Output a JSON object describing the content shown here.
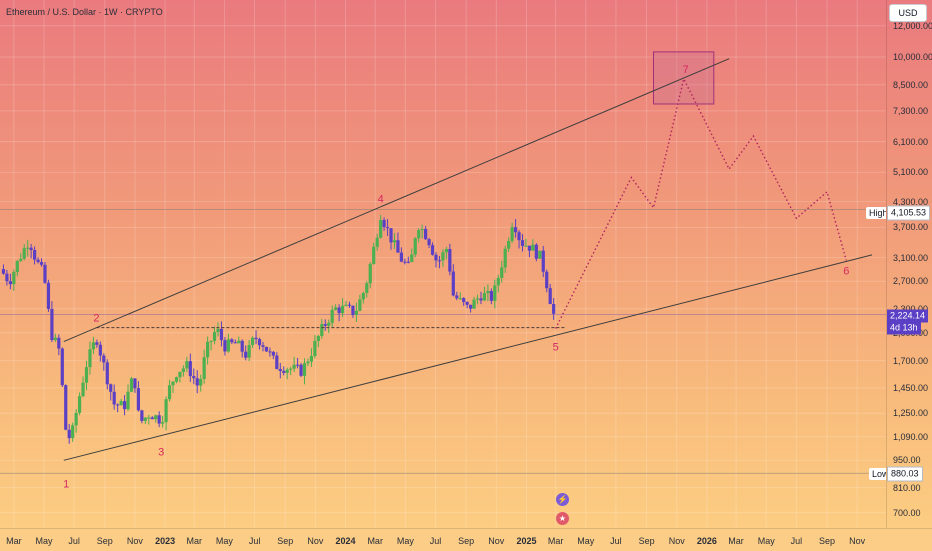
{
  "header": {
    "symbol_title": "Ethereum / U.S. Dollar · 1W · CRYPTO"
  },
  "price_axis": {
    "currency": "USD"
  },
  "markers": {
    "high_label": "High",
    "high_value": "4,105.53",
    "low_label": "Low",
    "low_value": "880.03",
    "current_price": "2,224.14",
    "countdown": "4d 13h"
  },
  "events": {
    "icon_1": "lightning-icon",
    "icon_2": "flag-us-icon"
  },
  "colors": {
    "up": "#4caf50",
    "down": "#5b3fc4",
    "trendline": "#3d3d3d",
    "projection": "#b0245e",
    "wave_label": "#d6275f"
  },
  "chart_data": {
    "type": "candlestick",
    "title": "Ethereum / U.S. Dollar · 1W · CRYPTO",
    "y_scale": "log",
    "y_ticks": [
      700,
      810,
      950,
      1090,
      1250,
      1450,
      1700,
      2000,
      2300,
      2700,
      3100,
      3700,
      4300,
      5100,
      6100,
      7300,
      8500,
      10000,
      12000
    ],
    "y_tick_labels": [
      "700.00",
      "810.00",
      "950.00",
      "1,090.00",
      "1,250.00",
      "1,450.00",
      "1,700.00",
      "2,000.00",
      "2,300.00",
      "2,700.00",
      "3,100.00",
      "3,700.00",
      "4,300.00",
      "5,100.00",
      "6,100.00",
      "7,300.00",
      "8,500.00",
      "10,000.00",
      "12,000.00"
    ],
    "x_ticks": [
      "Mar",
      "May",
      "Jul",
      "Sep",
      "Nov",
      "2023",
      "Mar",
      "May",
      "Jul",
      "Sep",
      "Nov",
      "2024",
      "Mar",
      "May",
      "Jul",
      "Sep",
      "Nov",
      "2025",
      "Mar",
      "May",
      "Jul",
      "Sep",
      "Nov",
      "2026",
      "Mar",
      "May",
      "Jul",
      "Sep",
      "Nov"
    ],
    "x_tick_dates": [
      "2022-03",
      "2022-05",
      "2022-07",
      "2022-09",
      "2022-11",
      "2023-01",
      "2023-03",
      "2023-05",
      "2023-07",
      "2023-09",
      "2023-11",
      "2024-01",
      "2024-03",
      "2024-05",
      "2024-07",
      "2024-09",
      "2024-11",
      "2025-01",
      "2025-03",
      "2025-05",
      "2025-07",
      "2025-09",
      "2025-11",
      "2026-01",
      "2026-03",
      "2026-05",
      "2026-07",
      "2026-09",
      "2026-11"
    ],
    "x_range": [
      "2022-02-01",
      "2026-12-01"
    ],
    "y_range": [
      640,
      13000
    ],
    "high": 4105.53,
    "low": 880.03,
    "last_price": 2224.14,
    "closes": [
      [
        "2022-02-01",
        2900
      ],
      [
        "2022-02-20",
        2700
      ],
      [
        "2022-03-10",
        3050
      ],
      [
        "2022-04-01",
        3450
      ],
      [
        "2022-04-15",
        3050
      ],
      [
        "2022-05-01",
        2800
      ],
      [
        "2022-05-15",
        2000
      ],
      [
        "2022-06-01",
        1800
      ],
      [
        "2022-06-15",
        1100
      ],
      [
        "2022-06-25",
        1080
      ],
      [
        "2022-07-10",
        1350
      ],
      [
        "2022-07-25",
        1650
      ],
      [
        "2022-08-15",
        1950
      ],
      [
        "2022-09-05",
        1550
      ],
      [
        "2022-09-20",
        1320
      ],
      [
        "2022-10-10",
        1300
      ],
      [
        "2022-10-30",
        1570
      ],
      [
        "2022-11-10",
        1180
      ],
      [
        "2022-12-01",
        1250
      ],
      [
        "2022-12-25",
        1200
      ],
      [
        "2023-01-10",
        1450
      ],
      [
        "2023-01-25",
        1600
      ],
      [
        "2023-02-15",
        1650
      ],
      [
        "2023-03-10",
        1450
      ],
      [
        "2023-03-25",
        1800
      ],
      [
        "2023-04-15",
        2050
      ],
      [
        "2023-05-01",
        1850
      ],
      [
        "2023-05-25",
        1880
      ],
      [
        "2023-06-15",
        1750
      ],
      [
        "2023-07-01",
        1950
      ],
      [
        "2023-07-15",
        1900
      ],
      [
        "2023-08-15",
        1650
      ],
      [
        "2023-09-15",
        1620
      ],
      [
        "2023-10-05",
        1600
      ],
      [
        "2023-10-25",
        1800
      ],
      [
        "2023-11-15",
        2050
      ],
      [
        "2023-12-10",
        2300
      ],
      [
        "2024-01-01",
        2300
      ],
      [
        "2024-01-20",
        2250
      ],
      [
        "2024-02-10",
        2600
      ],
      [
        "2024-03-01",
        3400
      ],
      [
        "2024-03-12",
        4000
      ],
      [
        "2024-04-05",
        3400
      ],
      [
        "2024-04-20",
        3100
      ],
      [
        "2024-05-10",
        2900
      ],
      [
        "2024-05-25",
        3800
      ],
      [
        "2024-06-15",
        3500
      ],
      [
        "2024-07-05",
        3000
      ],
      [
        "2024-07-25",
        3300
      ],
      [
        "2024-08-05",
        2500
      ],
      [
        "2024-09-05",
        2300
      ],
      [
        "2024-10-01",
        2500
      ],
      [
        "2024-10-25",
        2450
      ],
      [
        "2024-11-15",
        3100
      ],
      [
        "2024-12-05",
        3900
      ],
      [
        "2024-12-20",
        3400
      ],
      [
        "2025-01-10",
        3300
      ],
      [
        "2025-01-30",
        3100
      ],
      [
        "2025-02-10",
        2700
      ],
      [
        "2025-02-25",
        2224.14
      ]
    ],
    "trendlines": [
      {
        "name": "upper",
        "from": [
          "2022-06-10",
          1900
        ],
        "to": [
          "2026-02-15",
          9900
        ]
      },
      {
        "name": "lower",
        "from": [
          "2022-06-10",
          950
        ],
        "to": [
          "2026-12-01",
          3150
        ]
      },
      {
        "name": "support",
        "style": "dashed",
        "from": [
          "2022-08-15",
          2060
        ],
        "to": [
          "2025-03-20",
          2060
        ]
      }
    ],
    "projection": [
      [
        "2025-03-01",
        2050
      ],
      [
        "2025-08-01",
        4950
      ],
      [
        "2025-09-15",
        4150
      ],
      [
        "2025-11-15",
        8800
      ],
      [
        "2026-02-15",
        5200
      ],
      [
        "2026-04-05",
        6300
      ],
      [
        "2026-07-01",
        3900
      ],
      [
        "2026-09-01",
        4550
      ],
      [
        "2026-10-10",
        3050
      ]
    ],
    "target_box": {
      "from": [
        "2025-09-15",
        7600
      ],
      "to": [
        "2026-01-15",
        10300
      ]
    },
    "wave_labels": [
      {
        "text": "1",
        "at": [
          "2022-06-15",
          880
        ]
      },
      {
        "text": "2",
        "at": [
          "2022-08-15",
          2060
        ]
      },
      {
        "text": "3",
        "at": [
          "2022-12-20",
          1060
        ]
      },
      {
        "text": "4",
        "at": [
          "2024-03-12",
          4105
        ]
      },
      {
        "text": "5",
        "at": [
          "2025-03-01",
          2000
        ]
      },
      {
        "text": "6",
        "at": [
          "2026-10-10",
          3050
        ]
      },
      {
        "text": "7",
        "at": [
          "2025-11-15",
          8800
        ]
      }
    ]
  }
}
